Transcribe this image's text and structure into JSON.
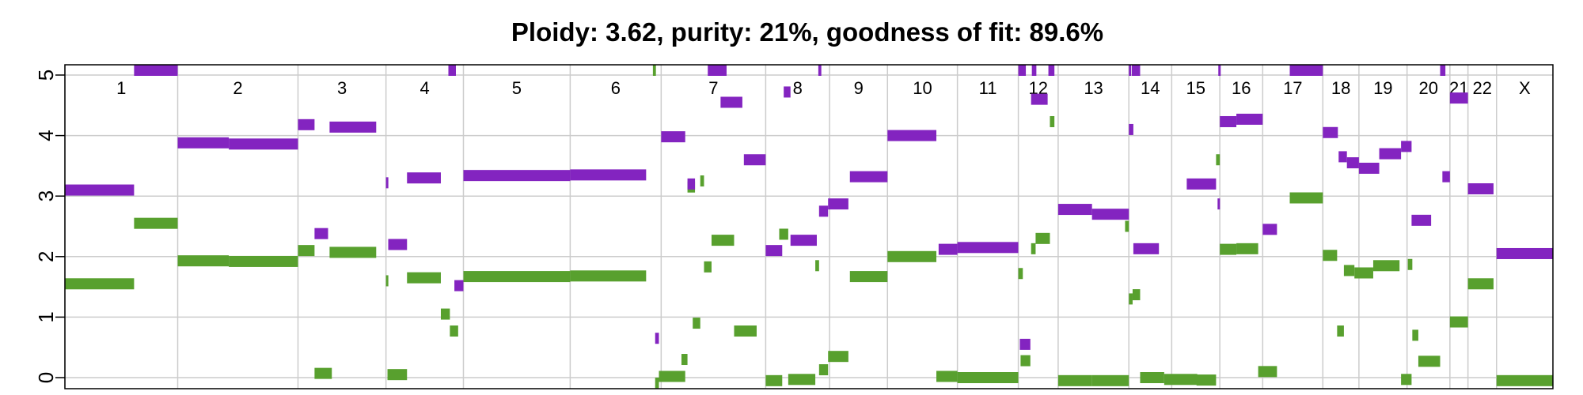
{
  "chart_data": {
    "type": "segment",
    "title": "Ploidy: 3.62, purity: 21%, goodness of fit: 89.6%",
    "ylim": [
      0,
      5
    ],
    "yticks": [
      0,
      1,
      2,
      3,
      4,
      5
    ],
    "grid": true,
    "colors": {
      "major": "#8324c0",
      "minor": "#58a02e",
      "grid": "#cccccc"
    },
    "chromosomes": [
      {
        "name": "1",
        "start": 0,
        "end": 1.5
      },
      {
        "name": "2",
        "start": 1.5,
        "end": 3.1
      },
      {
        "name": "3",
        "start": 3.1,
        "end": 4.27
      },
      {
        "name": "4",
        "start": 4.27,
        "end": 5.3
      },
      {
        "name": "5",
        "start": 5.3,
        "end": 6.72
      },
      {
        "name": "6",
        "start": 6.72,
        "end": 7.93
      },
      {
        "name": "7",
        "start": 7.93,
        "end": 9.32
      },
      {
        "name": "8",
        "start": 9.32,
        "end": 10.17
      },
      {
        "name": "9",
        "start": 10.17,
        "end": 10.94
      },
      {
        "name": "10",
        "start": 10.94,
        "end": 11.87
      },
      {
        "name": "11",
        "start": 11.87,
        "end": 12.68
      },
      {
        "name": "12",
        "start": 12.68,
        "end": 13.21
      },
      {
        "name": "13",
        "start": 13.21,
        "end": 14.15
      },
      {
        "name": "14",
        "start": 14.15,
        "end": 14.72
      },
      {
        "name": "15",
        "start": 14.72,
        "end": 15.36
      },
      {
        "name": "16",
        "start": 15.36,
        "end": 15.93
      },
      {
        "name": "17",
        "start": 15.93,
        "end": 16.73
      },
      {
        "name": "18",
        "start": 16.73,
        "end": 17.21
      },
      {
        "name": "19",
        "start": 17.21,
        "end": 17.85
      },
      {
        "name": "20",
        "start": 17.85,
        "end": 18.42
      },
      {
        "name": "21",
        "start": 18.42,
        "end": 18.66
      },
      {
        "name": "22",
        "start": 18.66,
        "end": 19.04
      },
      {
        "name": "X",
        "start": 19.04,
        "end": 19.79
      }
    ],
    "series": [
      {
        "name": "major",
        "segments": [
          {
            "x0": 0.0,
            "x1": 0.92,
            "y": 3.1
          },
          {
            "x0": 0.92,
            "x1": 1.5,
            "y": 5.1
          },
          {
            "x0": 1.5,
            "x1": 2.18,
            "y": 3.88
          },
          {
            "x0": 2.18,
            "x1": 3.1,
            "y": 3.86
          },
          {
            "x0": 3.1,
            "x1": 3.32,
            "y": 4.18
          },
          {
            "x0": 3.32,
            "x1": 3.5,
            "y": 2.38
          },
          {
            "x0": 3.52,
            "x1": 4.14,
            "y": 4.14
          },
          {
            "x0": 4.27,
            "x1": 4.29,
            "y": 3.22
          },
          {
            "x0": 4.3,
            "x1": 4.55,
            "y": 2.2
          },
          {
            "x0": 4.55,
            "x1": 5.0,
            "y": 3.3
          },
          {
            "x0": 5.1,
            "x1": 5.2,
            "y": 5.1
          },
          {
            "x0": 5.18,
            "x1": 5.3,
            "y": 1.52
          },
          {
            "x0": 5.3,
            "x1": 6.72,
            "y": 3.34
          },
          {
            "x0": 6.72,
            "x1": 7.73,
            "y": 3.35
          },
          {
            "x0": 7.85,
            "x1": 7.9,
            "y": 0.65
          },
          {
            "x0": 7.93,
            "x1": 8.25,
            "y": 3.98
          },
          {
            "x0": 8.28,
            "x1": 8.38,
            "y": 3.2
          },
          {
            "x0": 8.55,
            "x1": 8.8,
            "y": 5.1
          },
          {
            "x0": 8.72,
            "x1": 9.01,
            "y": 4.55
          },
          {
            "x0": 9.03,
            "x1": 9.32,
            "y": 3.6
          },
          {
            "x0": 9.32,
            "x1": 9.54,
            "y": 2.1
          },
          {
            "x0": 9.56,
            "x1": 9.65,
            "y": 4.72
          },
          {
            "x0": 9.65,
            "x1": 10.0,
            "y": 2.27
          },
          {
            "x0": 10.02,
            "x1": 10.06,
            "y": 5.1
          },
          {
            "x0": 10.03,
            "x1": 10.15,
            "y": 2.75
          },
          {
            "x0": 10.15,
            "x1": 10.42,
            "y": 2.87
          },
          {
            "x0": 10.44,
            "x1": 10.94,
            "y": 3.32
          },
          {
            "x0": 10.94,
            "x1": 11.59,
            "y": 4.0
          },
          {
            "x0": 11.62,
            "x1": 11.87,
            "y": 2.12
          },
          {
            "x0": 11.87,
            "x1": 12.68,
            "y": 2.15
          },
          {
            "x0": 12.68,
            "x1": 12.78,
            "y": 5.1
          },
          {
            "x0": 12.86,
            "x1": 12.92,
            "y": 5.1
          },
          {
            "x0": 12.7,
            "x1": 12.84,
            "y": 0.55
          },
          {
            "x0": 12.85,
            "x1": 13.07,
            "y": 4.6
          },
          {
            "x0": 13.08,
            "x1": 13.16,
            "y": 5.1
          },
          {
            "x0": 13.21,
            "x1": 13.66,
            "y": 2.78
          },
          {
            "x0": 13.66,
            "x1": 14.15,
            "y": 2.7
          },
          {
            "x0": 14.15,
            "x1": 14.18,
            "y": 5.1
          },
          {
            "x0": 14.19,
            "x1": 14.3,
            "y": 5.1
          },
          {
            "x0": 14.15,
            "x1": 14.21,
            "y": 4.1
          },
          {
            "x0": 14.21,
            "x1": 14.55,
            "y": 2.13
          },
          {
            "x0": 14.92,
            "x1": 15.31,
            "y": 3.2
          },
          {
            "x0": 15.34,
            "x1": 15.36,
            "y": 5.1
          },
          {
            "x0": 15.33,
            "x1": 15.36,
            "y": 2.87
          },
          {
            "x0": 15.36,
            "x1": 15.58,
            "y": 4.23
          },
          {
            "x0": 15.58,
            "x1": 15.93,
            "y": 4.27
          },
          {
            "x0": 15.93,
            "x1": 16.12,
            "y": 2.45
          },
          {
            "x0": 16.29,
            "x1": 16.73,
            "y": 5.1
          },
          {
            "x0": 16.73,
            "x1": 16.93,
            "y": 4.05
          },
          {
            "x0": 16.94,
            "x1": 17.05,
            "y": 3.65
          },
          {
            "x0": 17.05,
            "x1": 17.21,
            "y": 3.55
          },
          {
            "x0": 17.21,
            "x1": 17.48,
            "y": 3.46
          },
          {
            "x0": 17.48,
            "x1": 17.77,
            "y": 3.7
          },
          {
            "x0": 17.77,
            "x1": 17.91,
            "y": 3.82
          },
          {
            "x0": 17.91,
            "x1": 18.17,
            "y": 2.6
          },
          {
            "x0": 18.29,
            "x1": 18.36,
            "y": 5.1
          },
          {
            "x0": 18.32,
            "x1": 18.42,
            "y": 3.32
          },
          {
            "x0": 18.42,
            "x1": 18.66,
            "y": 4.62
          },
          {
            "x0": 18.66,
            "x1": 19.0,
            "y": 3.12
          },
          {
            "x0": 19.04,
            "x1": 19.79,
            "y": 2.05
          }
        ]
      },
      {
        "name": "minor",
        "segments": [
          {
            "x0": 0.0,
            "x1": 0.92,
            "y": 1.55
          },
          {
            "x0": 0.92,
            "x1": 1.5,
            "y": 2.55
          },
          {
            "x0": 1.5,
            "x1": 2.18,
            "y": 1.93
          },
          {
            "x0": 2.18,
            "x1": 3.1,
            "y": 1.92
          },
          {
            "x0": 3.1,
            "x1": 3.32,
            "y": 2.1
          },
          {
            "x0": 3.32,
            "x1": 3.55,
            "y": 0.07
          },
          {
            "x0": 3.52,
            "x1": 4.14,
            "y": 2.07
          },
          {
            "x0": 4.27,
            "x1": 4.29,
            "y": 1.6
          },
          {
            "x0": 4.29,
            "x1": 4.55,
            "y": 0.05
          },
          {
            "x0": 4.55,
            "x1": 5.0,
            "y": 1.65
          },
          {
            "x0": 5.0,
            "x1": 5.12,
            "y": 1.05
          },
          {
            "x0": 5.12,
            "x1": 5.23,
            "y": 0.77
          },
          {
            "x0": 5.3,
            "x1": 6.72,
            "y": 1.67
          },
          {
            "x0": 6.72,
            "x1": 7.73,
            "y": 1.68
          },
          {
            "x0": 7.82,
            "x1": 7.86,
            "y": 5.1
          },
          {
            "x0": 7.85,
            "x1": 7.9,
            "y": -0.1
          },
          {
            "x0": 7.9,
            "x1": 8.25,
            "y": 0.02
          },
          {
            "x0": 8.2,
            "x1": 8.28,
            "y": 0.3
          },
          {
            "x0": 8.28,
            "x1": 8.38,
            "y": 3.15
          },
          {
            "x0": 8.35,
            "x1": 8.45,
            "y": 0.9
          },
          {
            "x0": 8.45,
            "x1": 8.5,
            "y": 3.25
          },
          {
            "x0": 8.5,
            "x1": 8.6,
            "y": 1.83
          },
          {
            "x0": 8.6,
            "x1": 8.9,
            "y": 2.27
          },
          {
            "x0": 8.9,
            "x1": 9.2,
            "y": 0.77
          },
          {
            "x0": 9.32,
            "x1": 9.54,
            "y": -0.05
          },
          {
            "x0": 9.5,
            "x1": 9.62,
            "y": 2.37
          },
          {
            "x0": 9.62,
            "x1": 9.98,
            "y": -0.03
          },
          {
            "x0": 9.98,
            "x1": 10.03,
            "y": 1.85
          },
          {
            "x0": 10.03,
            "x1": 10.15,
            "y": 0.13
          },
          {
            "x0": 10.15,
            "x1": 10.42,
            "y": 0.35
          },
          {
            "x0": 10.44,
            "x1": 10.94,
            "y": 1.67
          },
          {
            "x0": 10.94,
            "x1": 11.59,
            "y": 2.0
          },
          {
            "x0": 11.59,
            "x1": 11.87,
            "y": 0.02
          },
          {
            "x0": 11.87,
            "x1": 12.68,
            "y": 0.0
          },
          {
            "x0": 12.68,
            "x1": 12.74,
            "y": 1.72
          },
          {
            "x0": 12.71,
            "x1": 12.84,
            "y": 0.28
          },
          {
            "x0": 12.85,
            "x1": 12.91,
            "y": 2.13
          },
          {
            "x0": 12.91,
            "x1": 13.1,
            "y": 2.3
          },
          {
            "x0": 13.1,
            "x1": 13.16,
            "y": 4.23
          },
          {
            "x0": 13.21,
            "x1": 13.66,
            "y": -0.05
          },
          {
            "x0": 13.66,
            "x1": 14.15,
            "y": -0.05
          },
          {
            "x0": 14.1,
            "x1": 14.15,
            "y": 2.5
          },
          {
            "x0": 14.15,
            "x1": 14.2,
            "y": 1.3
          },
          {
            "x0": 14.2,
            "x1": 14.3,
            "y": 1.37
          },
          {
            "x0": 14.3,
            "x1": 14.62,
            "y": 0.0
          },
          {
            "x0": 14.62,
            "x1": 15.06,
            "y": -0.03
          },
          {
            "x0": 15.05,
            "x1": 15.31,
            "y": -0.04
          },
          {
            "x0": 15.31,
            "x1": 15.36,
            "y": 3.6
          },
          {
            "x0": 15.36,
            "x1": 15.58,
            "y": 2.12
          },
          {
            "x0": 15.58,
            "x1": 15.87,
            "y": 2.13
          },
          {
            "x0": 15.87,
            "x1": 16.12,
            "y": 0.1
          },
          {
            "x0": 16.29,
            "x1": 16.73,
            "y": 2.97
          },
          {
            "x0": 16.73,
            "x1": 16.92,
            "y": 2.02
          },
          {
            "x0": 16.92,
            "x1": 17.01,
            "y": 0.77
          },
          {
            "x0": 17.01,
            "x1": 17.15,
            "y": 1.77
          },
          {
            "x0": 17.15,
            "x1": 17.4,
            "y": 1.73
          },
          {
            "x0": 17.4,
            "x1": 17.75,
            "y": 1.85
          },
          {
            "x0": 17.77,
            "x1": 17.91,
            "y": -0.03
          },
          {
            "x0": 17.86,
            "x1": 17.92,
            "y": 1.87
          },
          {
            "x0": 17.92,
            "x1": 18.0,
            "y": 0.7
          },
          {
            "x0": 18.0,
            "x1": 18.29,
            "y": 0.27
          },
          {
            "x0": 18.42,
            "x1": 18.66,
            "y": 0.92
          },
          {
            "x0": 18.66,
            "x1": 19.0,
            "y": 1.55
          },
          {
            "x0": 19.04,
            "x1": 19.79,
            "y": -0.05
          }
        ]
      }
    ]
  }
}
